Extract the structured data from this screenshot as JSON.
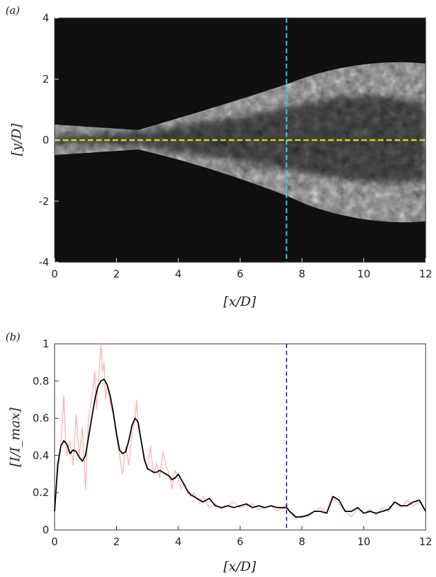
{
  "chart_data": [
    {
      "panel_label": "(a)",
      "type": "heatmap",
      "xlabel": "[x/D]",
      "ylabel": "[y/D]",
      "xlim": [
        0,
        12
      ],
      "ylim": [
        -4,
        4
      ],
      "xticks": [
        "0",
        "2",
        "4",
        "6",
        "8",
        "10",
        "12"
      ],
      "yticks": [
        "-4",
        "-2",
        "0",
        "2",
        "4"
      ],
      "annotations": [
        {
          "kind": "vertical-dashed-line",
          "x": 7.5,
          "color": "#33d6d6"
        },
        {
          "kind": "horizontal-dashed-line",
          "y": 0,
          "color": "#f2f20f"
        }
      ],
      "colors": {
        "background": "#101010",
        "jet": "#e0e0e0"
      }
    },
    {
      "panel_label": "(b)",
      "type": "line",
      "xlabel": "[x/D]",
      "ylabel": "[I/I_max]",
      "xlim": [
        0,
        12
      ],
      "ylim": [
        0,
        1
      ],
      "xticks": [
        "0",
        "2",
        "4",
        "6",
        "8",
        "10",
        "12"
      ],
      "yticks": [
        "0",
        "0.2",
        "0.4",
        "0.6",
        "0.8",
        "1"
      ],
      "grid": false,
      "series": [
        {
          "color": "#ffb0b0",
          "x": [
            0.0,
            0.1,
            0.2,
            0.3,
            0.35,
            0.4,
            0.5,
            0.6,
            0.7,
            0.8,
            0.9,
            1.0,
            1.05,
            1.1,
            1.2,
            1.3,
            1.35,
            1.4,
            1.5,
            1.55,
            1.6,
            1.65,
            1.7,
            1.8,
            1.9,
            2.0,
            2.1,
            2.2,
            2.3,
            2.4,
            2.5,
            2.6,
            2.65,
            2.7,
            2.8,
            2.9,
            3.0,
            3.1,
            3.2,
            3.3,
            3.4,
            3.5,
            3.6,
            3.7,
            3.8,
            3.9,
            4.0,
            4.1,
            4.2,
            4.3,
            4.4,
            4.5,
            4.6,
            4.7,
            4.8,
            4.9,
            5.0,
            5.2,
            5.4,
            5.6,
            5.8,
            6.0,
            6.2,
            6.4,
            6.6,
            6.8,
            7.0,
            7.2,
            7.4,
            7.5,
            7.6,
            7.8,
            8.0,
            8.2,
            8.4,
            8.6,
            8.8,
            9.0,
            9.2,
            9.4,
            9.6,
            9.8,
            10.0,
            10.2,
            10.4,
            10.6,
            10.8,
            11.0,
            11.2,
            11.4,
            11.6,
            11.8,
            12.0
          ],
          "y": [
            0.12,
            0.3,
            0.45,
            0.72,
            0.5,
            0.4,
            0.48,
            0.35,
            0.62,
            0.4,
            0.55,
            0.22,
            0.45,
            0.6,
            0.7,
            0.85,
            0.65,
            0.75,
            1.0,
            0.85,
            0.9,
            0.7,
            0.78,
            0.68,
            0.62,
            0.5,
            0.4,
            0.3,
            0.45,
            0.35,
            0.5,
            0.6,
            0.7,
            0.55,
            0.48,
            0.4,
            0.32,
            0.45,
            0.3,
            0.36,
            0.28,
            0.42,
            0.35,
            0.3,
            0.22,
            0.32,
            0.28,
            0.22,
            0.25,
            0.2,
            0.18,
            0.2,
            0.17,
            0.14,
            0.18,
            0.15,
            0.12,
            0.14,
            0.11,
            0.13,
            0.15,
            0.12,
            0.13,
            0.14,
            0.11,
            0.12,
            0.13,
            0.1,
            0.12,
            0.14,
            0.1,
            0.06,
            0.08,
            0.07,
            0.1,
            0.12,
            0.09,
            0.17,
            0.14,
            0.1,
            0.07,
            0.12,
            0.09,
            0.11,
            0.08,
            0.12,
            0.1,
            0.15,
            0.12,
            0.16,
            0.13,
            0.15,
            0.1
          ]
        },
        {
          "color": "#000000",
          "x": [
            0.0,
            0.1,
            0.2,
            0.3,
            0.4,
            0.5,
            0.6,
            0.7,
            0.8,
            0.9,
            1.0,
            1.1,
            1.2,
            1.3,
            1.4,
            1.5,
            1.6,
            1.7,
            1.8,
            1.9,
            2.0,
            2.1,
            2.2,
            2.3,
            2.4,
            2.5,
            2.6,
            2.7,
            2.8,
            2.9,
            3.0,
            3.1,
            3.2,
            3.3,
            3.4,
            3.5,
            3.6,
            3.7,
            3.8,
            3.9,
            4.0,
            4.1,
            4.2,
            4.3,
            4.4,
            4.5,
            4.6,
            4.7,
            4.8,
            4.9,
            5.0,
            5.2,
            5.4,
            5.6,
            5.8,
            6.0,
            6.2,
            6.4,
            6.6,
            6.8,
            7.0,
            7.2,
            7.4,
            7.5,
            7.6,
            7.8,
            8.0,
            8.2,
            8.4,
            8.6,
            8.8,
            9.0,
            9.2,
            9.4,
            9.6,
            9.8,
            10.0,
            10.2,
            10.4,
            10.6,
            10.8,
            11.0,
            11.2,
            11.4,
            11.6,
            11.8,
            12.0
          ],
          "y": [
            0.1,
            0.35,
            0.45,
            0.48,
            0.46,
            0.41,
            0.43,
            0.42,
            0.39,
            0.37,
            0.4,
            0.5,
            0.6,
            0.7,
            0.77,
            0.8,
            0.81,
            0.78,
            0.72,
            0.63,
            0.52,
            0.43,
            0.41,
            0.42,
            0.48,
            0.56,
            0.6,
            0.58,
            0.48,
            0.38,
            0.33,
            0.32,
            0.31,
            0.31,
            0.32,
            0.31,
            0.3,
            0.29,
            0.27,
            0.28,
            0.3,
            0.27,
            0.24,
            0.21,
            0.19,
            0.18,
            0.17,
            0.16,
            0.15,
            0.16,
            0.17,
            0.13,
            0.12,
            0.13,
            0.12,
            0.13,
            0.14,
            0.12,
            0.13,
            0.12,
            0.13,
            0.12,
            0.12,
            0.12,
            0.1,
            0.07,
            0.07,
            0.08,
            0.1,
            0.1,
            0.09,
            0.18,
            0.16,
            0.1,
            0.1,
            0.12,
            0.09,
            0.1,
            0.09,
            0.1,
            0.11,
            0.15,
            0.13,
            0.13,
            0.15,
            0.16,
            0.1
          ]
        }
      ],
      "annotations": [
        {
          "kind": "vertical-dashed-line",
          "x": 7.5,
          "color": "#1a1aaa"
        }
      ]
    }
  ]
}
